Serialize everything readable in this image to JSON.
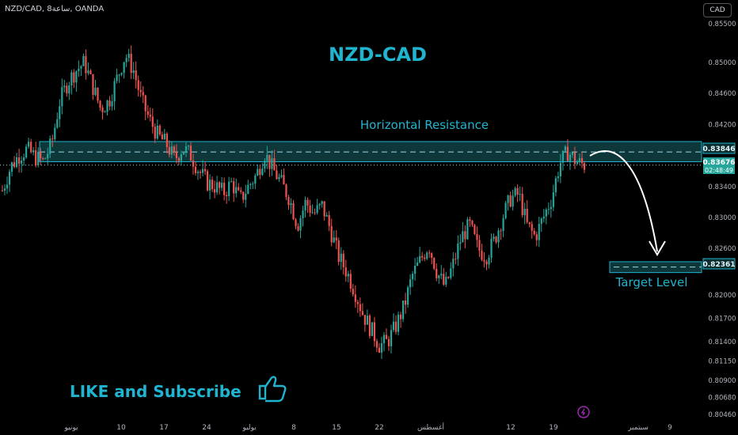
{
  "header": {
    "symbol_line": "NZD/CAD, 8ساعة, OANDA",
    "currency_button": "CAD"
  },
  "chart_data": {
    "type": "candlestick",
    "title": "NZD-CAD",
    "annotations": {
      "resistance_label": "Horizontal Resistance",
      "target_label": "Target Level",
      "promo": "LIKE and Subscribe"
    },
    "y_ticks": [
      "0.85500",
      "0.85000",
      "0.84600",
      "0.84200",
      "0.83400",
      "0.83000",
      "0.82600",
      "0.82000",
      "0.81700",
      "0.81400",
      "0.81150",
      "0.80900",
      "0.80680",
      "0.80460"
    ],
    "y_tick_values": [
      0.855,
      0.85,
      0.846,
      0.842,
      0.834,
      0.83,
      0.826,
      0.82,
      0.817,
      0.814,
      0.8115,
      0.809,
      0.8068,
      0.8046
    ],
    "x_ticks": [
      "يونيو",
      "10",
      "17",
      "24",
      "يوليو",
      "8",
      "15",
      "22",
      "أغسطس",
      "12",
      "19",
      "سبتمبر",
      "9"
    ],
    "price_labels": {
      "resistance": "0.83846",
      "current": "0.83676",
      "timer": "02:48:49",
      "target": "0.82361"
    },
    "levels": {
      "zone_top": 0.8398,
      "zone_bottom": 0.8372,
      "resistance": 0.83846,
      "current": 0.83676,
      "target": 0.82361,
      "target_zone_top": 0.8243,
      "target_zone_bottom": 0.8229
    },
    "price_path": [
      0.8335,
      0.8365,
      0.838,
      0.8388,
      0.8378,
      0.8372,
      0.8395,
      0.845,
      0.8475,
      0.849,
      0.85,
      0.847,
      0.844,
      0.845,
      0.848,
      0.851,
      0.849,
      0.845,
      0.8425,
      0.8405,
      0.8395,
      0.8375,
      0.839,
      0.838,
      0.836,
      0.8345,
      0.834,
      0.8332,
      0.8345,
      0.8322,
      0.834,
      0.8355,
      0.8383,
      0.8362,
      0.8345,
      0.8325,
      0.829,
      0.832,
      0.8305,
      0.8315,
      0.8285,
      0.825,
      0.823,
      0.8205,
      0.8175,
      0.8155,
      0.8135,
      0.814,
      0.816,
      0.8185,
      0.8225,
      0.8245,
      0.8265,
      0.823,
      0.821,
      0.824,
      0.8275,
      0.829,
      0.826,
      0.825,
      0.827,
      0.83,
      0.8325,
      0.833,
      0.829,
      0.8275,
      0.83,
      0.8325,
      0.837,
      0.8385,
      0.8372,
      0.8368
    ],
    "colors": {
      "up": "#26a69a",
      "down": "#ef5350",
      "accent": "#1fb5d0",
      "zone_fill": "#0f3d3f"
    }
  }
}
